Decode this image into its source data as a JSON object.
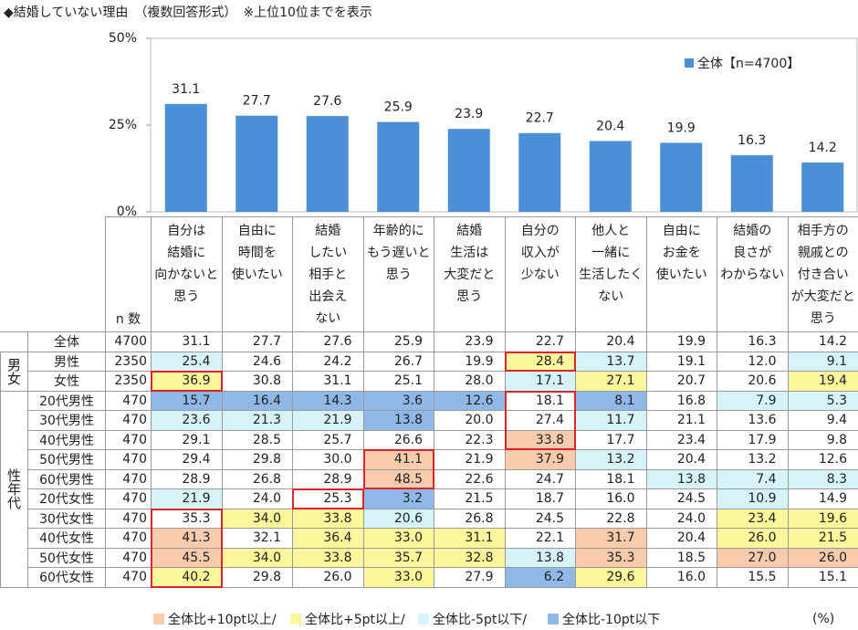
{
  "chart_data": {
    "type": "bar",
    "title": "◆結婚していない理由　（複数回答形式）　※上位10位までを表示",
    "categories": [
      "自分は\n結婚に\n向かないと\n思う",
      "自由に\n時間を\n使いたい",
      "結婚\nしたい\n相手と\n出会え\nない",
      "年齢的に\nもう遅いと\n思う",
      "結婚\n生活は\n大変だと\n思う",
      "自分の\n収入が\n少ない",
      "他人と\n一緒に\n生活したく\nない",
      "自由に\nお金を\n使いたい",
      "結婚の\n良さが\nわからない",
      "相手方の\n親戚との\n付き合い\nが大変だと\n思う"
    ],
    "series": [
      {
        "name": "全体【n=4700】",
        "color": "#4a8fd8",
        "values": [
          31.1,
          27.7,
          27.6,
          25.9,
          23.9,
          22.7,
          20.4,
          19.9,
          16.3,
          14.2
        ]
      }
    ],
    "ylim": [
      0,
      50
    ],
    "yticks": [
      {
        "value": 0,
        "label": "0%"
      },
      {
        "value": 25,
        "label": "25%"
      },
      {
        "value": 50,
        "label": "50%"
      }
    ],
    "legend": "upper right"
  },
  "table": {
    "n_header": "n 数",
    "total": {
      "label": "全体",
      "n": 4700,
      "values": [
        "31.1",
        "27.7",
        "27.6",
        "25.9",
        "23.9",
        "22.7",
        "20.4",
        "19.9",
        "16.3",
        "14.2"
      ]
    },
    "groups": [
      {
        "label": "男女",
        "rows": [
          {
            "label": "男性",
            "n": 2350,
            "values": [
              "25.4",
              "24.6",
              "24.2",
              "26.7",
              "19.9",
              "28.4",
              "13.7",
              "19.1",
              "12.0",
              "9.1"
            ]
          },
          {
            "label": "女性",
            "n": 2350,
            "values": [
              "36.9",
              "30.8",
              "31.1",
              "25.1",
              "28.0",
              "17.1",
              "27.1",
              "20.7",
              "20.6",
              "19.4"
            ]
          }
        ]
      },
      {
        "label": "性年代",
        "rows": [
          {
            "label": "20代男性",
            "n": 470,
            "values": [
              "15.7",
              "16.4",
              "14.3",
              "3.6",
              "12.6",
              "18.1",
              "8.1",
              "16.8",
              "7.9",
              "5.3"
            ]
          },
          {
            "label": "30代男性",
            "n": 470,
            "values": [
              "23.6",
              "21.3",
              "21.9",
              "13.8",
              "20.0",
              "27.4",
              "11.7",
              "21.1",
              "13.6",
              "9.4"
            ]
          },
          {
            "label": "40代男性",
            "n": 470,
            "values": [
              "29.1",
              "28.5",
              "25.7",
              "26.6",
              "22.3",
              "33.8",
              "17.7",
              "23.4",
              "17.9",
              "9.8"
            ]
          },
          {
            "label": "50代男性",
            "n": 470,
            "values": [
              "29.4",
              "29.8",
              "30.0",
              "41.1",
              "21.9",
              "37.9",
              "13.2",
              "20.4",
              "13.2",
              "12.6"
            ]
          },
          {
            "label": "60代男性",
            "n": 470,
            "values": [
              "28.9",
              "26.8",
              "28.9",
              "48.5",
              "22.6",
              "24.7",
              "18.1",
              "13.8",
              "7.4",
              "8.3"
            ]
          },
          {
            "label": "20代女性",
            "n": 470,
            "values": [
              "21.9",
              "24.0",
              "25.3",
              "3.2",
              "21.5",
              "18.7",
              "16.0",
              "24.5",
              "10.9",
              "14.9"
            ]
          },
          {
            "label": "30代女性",
            "n": 470,
            "values": [
              "35.3",
              "34.0",
              "33.8",
              "20.6",
              "26.8",
              "24.5",
              "22.8",
              "24.0",
              "23.4",
              "19.6"
            ]
          },
          {
            "label": "40代女性",
            "n": 470,
            "values": [
              "41.3",
              "32.1",
              "36.4",
              "33.0",
              "31.1",
              "22.1",
              "31.7",
              "20.4",
              "26.0",
              "21.5"
            ]
          },
          {
            "label": "50代女性",
            "n": 470,
            "values": [
              "45.5",
              "34.0",
              "33.8",
              "35.7",
              "32.8",
              "13.8",
              "35.3",
              "18.5",
              "27.0",
              "26.0"
            ]
          },
          {
            "label": "60代女性",
            "n": 470,
            "values": [
              "40.2",
              "29.8",
              "26.0",
              "33.0",
              "27.9",
              "6.2",
              "29.6",
              "16.0",
              "15.5",
              "15.1"
            ]
          }
        ]
      }
    ],
    "legend": [
      {
        "label": "全体比+10pt以上/",
        "color": "#f8cbad",
        "threshold": 10
      },
      {
        "label": "全体比+5pt以上/",
        "color": "#fbf79a",
        "threshold": 5
      },
      {
        "label": "全体比-5pt以下/",
        "color": "#d6f3fa",
        "threshold": -5
      },
      {
        "label": "全体比-10pt以下",
        "color": "#8fb8e6",
        "threshold": -10
      }
    ],
    "unit": "(%)"
  }
}
